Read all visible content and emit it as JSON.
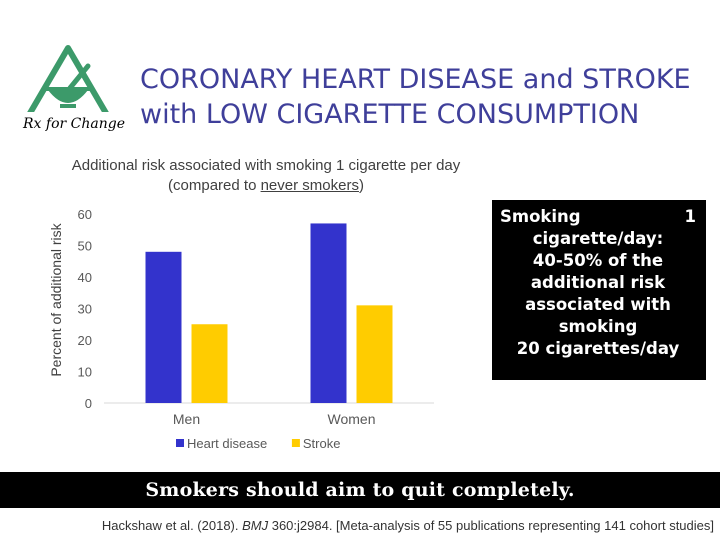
{
  "logo": {
    "text": "Rx for Change"
  },
  "title": {
    "line1": "CORONARY HEART DISEASE and STROKE",
    "line2": "with LOW CIGARETTE CONSUMPTION"
  },
  "chart_data": {
    "type": "bar",
    "title_line1": "Additional risk associated with smoking 1 cigarette per day",
    "title_line2_prefix": "(compared to ",
    "title_line2_underlined": "never smokers",
    "title_line2_suffix": ")",
    "categories": [
      "Men",
      "Women"
    ],
    "series": [
      {
        "name": "Heart disease",
        "values": [
          48,
          57
        ],
        "color": "#3333cc"
      },
      {
        "name": "Stroke",
        "values": [
          25,
          31
        ],
        "color": "#ffcc00"
      }
    ],
    "xlabel": "",
    "ylabel": "Percent of additional risk",
    "ylim": [
      0,
      60
    ],
    "yticks": [
      0,
      10,
      20,
      30,
      40,
      50,
      60
    ],
    "grid": false,
    "legend_position": "bottom"
  },
  "note": {
    "line1_left": "Smoking",
    "line1_right": "1",
    "lines": [
      "cigarette/day:",
      "40-50% of the",
      "additional risk",
      "associated with",
      "smoking",
      "20 cigarettes/day"
    ]
  },
  "banner": {
    "text": "Smokers should aim to quit completely."
  },
  "citation": {
    "prefix": "Hackshaw et al. (2018). ",
    "journal": "BMJ",
    "suffix": " 360:j2984. [Meta-analysis of 55 publications representing 141 cohort studies]"
  }
}
